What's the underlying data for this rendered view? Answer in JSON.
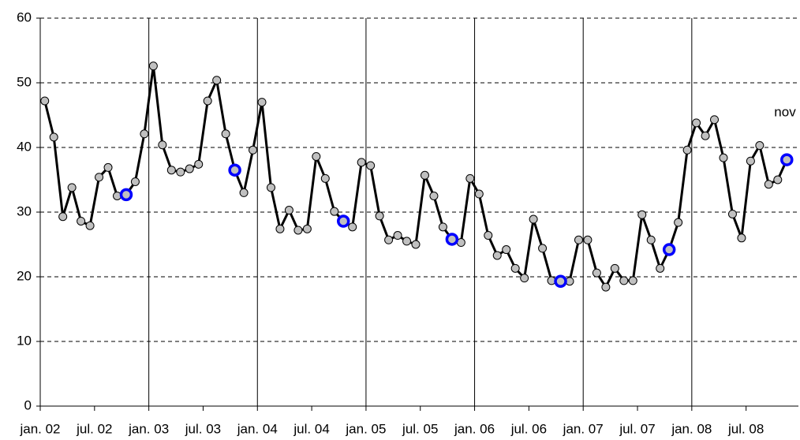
{
  "chart_data": {
    "type": "line",
    "annotation": "nov",
    "categories": [
      "jan. 02",
      null,
      null,
      null,
      null,
      null,
      "jul. 02",
      null,
      null,
      null,
      null,
      null,
      "jan. 03",
      null,
      null,
      null,
      null,
      null,
      "jul. 03",
      null,
      null,
      null,
      null,
      null,
      "jan. 04",
      null,
      null,
      null,
      null,
      null,
      "jul. 04",
      null,
      null,
      null,
      null,
      null,
      "jan. 05",
      null,
      null,
      null,
      null,
      null,
      "jul. 05",
      null,
      null,
      null,
      null,
      null,
      "jan. 06",
      null,
      null,
      null,
      null,
      null,
      "jul. 06",
      null,
      null,
      null,
      null,
      null,
      "jan. 07",
      null,
      null,
      null,
      null,
      null,
      "jul. 07",
      null,
      null,
      null,
      null,
      null,
      "jan. 08",
      null,
      null,
      null,
      null,
      null,
      "jul. 08",
      null,
      null,
      null,
      null
    ],
    "series": [
      {
        "color": "#000000",
        "marker_color": "#c0c0c0",
        "values": [
          47.2,
          41.6,
          29.3,
          33.8,
          28.6,
          27.9,
          35.4,
          36.9,
          32.5,
          32.7,
          34.7,
          42.1,
          52.6,
          40.4,
          36.5,
          36.2,
          36.7,
          37.4,
          47.2,
          50.4,
          42.1,
          36.5,
          33.0,
          39.6,
          47.0,
          33.8,
          27.4,
          30.3,
          27.2,
          27.4,
          38.6,
          35.2,
          30.1,
          28.6,
          27.7,
          37.7,
          37.2,
          29.4,
          25.7,
          26.4,
          25.5,
          25.0,
          35.7,
          32.5,
          27.7,
          25.8,
          25.3,
          35.2,
          32.8,
          26.4,
          23.3,
          24.2,
          21.3,
          19.8,
          28.9,
          24.4,
          19.4,
          19.3,
          19.3,
          25.7,
          25.7,
          20.6,
          18.4,
          21.3,
          19.4,
          19.4,
          29.6,
          25.7,
          21.3,
          24.2,
          28.4,
          39.6,
          43.8,
          41.8,
          44.3,
          38.4,
          29.7,
          26.0,
          37.9,
          40.3,
          34.3,
          35.0,
          38.1
        ]
      },
      {
        "color": "#0000ff",
        "highlight": true,
        "values": [
          null,
          null,
          null,
          null,
          null,
          null,
          null,
          null,
          null,
          32.7,
          null,
          null,
          null,
          null,
          null,
          null,
          null,
          null,
          null,
          null,
          null,
          36.5,
          null,
          null,
          null,
          null,
          null,
          null,
          null,
          null,
          null,
          null,
          null,
          28.6,
          null,
          null,
          null,
          null,
          null,
          null,
          null,
          null,
          null,
          null,
          null,
          25.8,
          null,
          null,
          null,
          null,
          null,
          null,
          null,
          null,
          null,
          null,
          null,
          19.3,
          null,
          null,
          null,
          null,
          null,
          null,
          null,
          null,
          null,
          null,
          null,
          24.2,
          null,
          null,
          null,
          null,
          null,
          null,
          null,
          null,
          null,
          null,
          null,
          null,
          38.1
        ]
      }
    ],
    "ylim": [
      0,
      60
    ],
    "yticks": [
      0,
      10,
      20,
      30,
      40,
      50,
      60
    ],
    "grid": true
  }
}
